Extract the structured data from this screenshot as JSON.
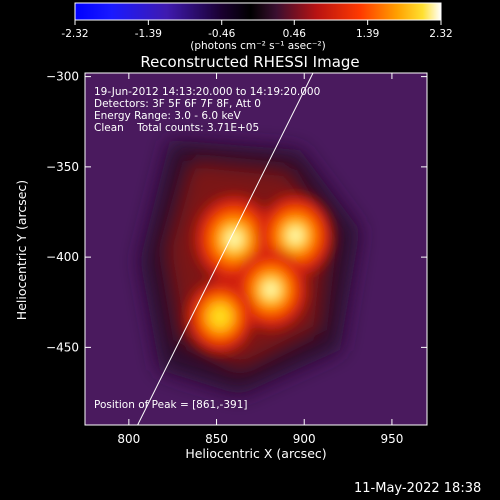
{
  "colorbar": {
    "ticks": [
      "-2.32",
      "-1.39",
      "-0.46",
      "0.46",
      "1.39",
      "2.32"
    ],
    "min": -2.32,
    "max": 2.32,
    "unit_label": "(photons cm⁻² s⁻¹ asec⁻²)"
  },
  "title": "Reconstructed RHESSI Image",
  "info": {
    "line1": "19-Jun-2012 14:13:20.000 to 14:19:20.000",
    "line2": "Detectors: 3F 5F 6F 7F 8F, Att 0",
    "line3": "Energy Range: 3.0 - 6.0 keV",
    "line4": "Clean    Total counts: 3.71E+05",
    "peak": "Position of Peak = [861,-391]"
  },
  "timestamp": "11-May-2022 18:38",
  "colors": {
    "background": "#000000",
    "text": "#ffffff",
    "limb": "#ffffff"
  },
  "chart_data": {
    "type": "heatmap",
    "title": "Reconstructed RHESSI Image",
    "xlabel": "Heliocentric X (arcsec)",
    "ylabel": "Heliocentric Y (arcsec)",
    "xlim": [
      775,
      970
    ],
    "ylim": [
      -493,
      -298
    ],
    "xticks": [
      800,
      850,
      900,
      950
    ],
    "yticks": [
      -300,
      -350,
      -400,
      -450
    ],
    "colormap": "hot (black-purple-red-orange-yellow-white)",
    "peak_position": [
      861,
      -391
    ],
    "sources": [
      {
        "x": 860,
        "y": -390,
        "relative_intensity": 1.0
      },
      {
        "x": 895,
        "y": -388,
        "relative_intensity": 0.85
      },
      {
        "x": 881,
        "y": -418,
        "relative_intensity": 0.8
      },
      {
        "x": 852,
        "y": -433,
        "relative_intensity": 0.6
      }
    ],
    "limb_line": {
      "x": [
        805,
        905
      ],
      "y": [
        -493,
        -298
      ]
    }
  }
}
